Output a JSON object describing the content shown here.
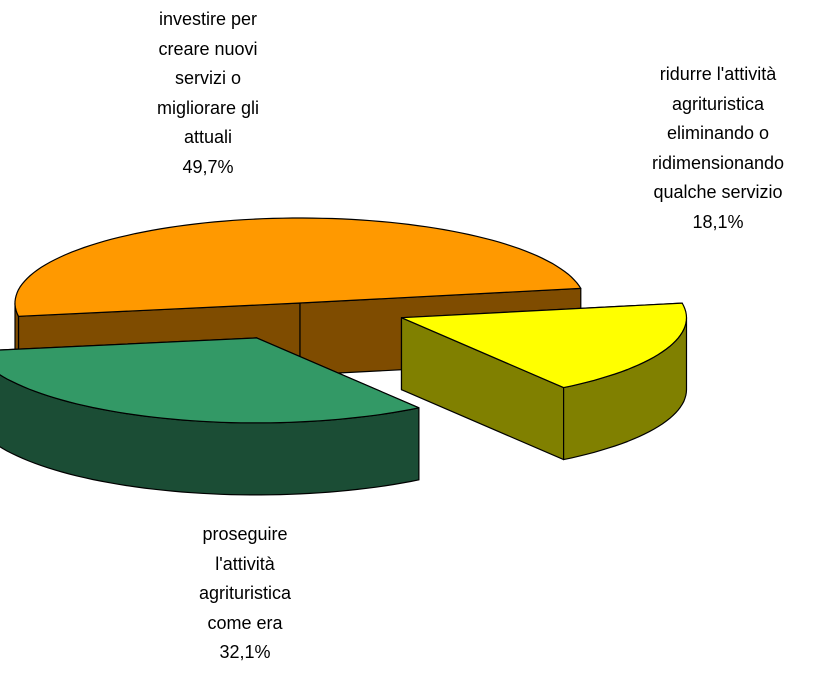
{
  "chart_data": {
    "type": "pie",
    "categories": [
      "investire per creare nuovi servizi o migliorare gli attuali",
      "ridurre l'attività agrituristica eliminando o ridimensionando qualche servizio",
      "proseguire l'attività agrituristica come era"
    ],
    "values": [
      49.7,
      18.1,
      32.1
    ],
    "value_labels": [
      "49,7%",
      "18,1%",
      "32,1%"
    ],
    "colors": [
      "#ff9900",
      "#ffff00",
      "#339966"
    ],
    "side_colors": [
      "#7f4c00",
      "#808000",
      "#1b4d35"
    ],
    "exploded": [
      false,
      true,
      true
    ]
  }
}
